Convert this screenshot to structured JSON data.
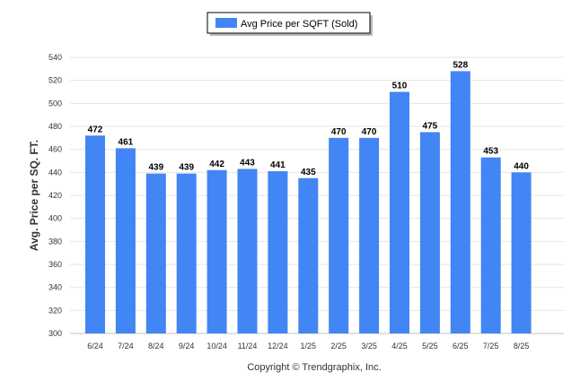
{
  "chart_data": {
    "type": "bar",
    "categories": [
      "6/24",
      "7/24",
      "8/24",
      "9/24",
      "10/24",
      "11/24",
      "12/24",
      "1/25",
      "2/25",
      "3/25",
      "4/25",
      "5/25",
      "6/25",
      "7/25",
      "8/25"
    ],
    "series": [
      {
        "name": "Avg Price per SQFT (Sold)",
        "values": [
          472,
          461,
          439,
          439,
          442,
          443,
          441,
          435,
          470,
          470,
          510,
          475,
          528,
          453,
          440
        ],
        "color": "#4285f4"
      }
    ],
    "ylabel": "Avg. Price per SQ. FT.",
    "xlabel": "",
    "ylim": [
      300,
      540
    ],
    "yticks": [
      300,
      320,
      340,
      360,
      380,
      400,
      420,
      440,
      460,
      480,
      500,
      520,
      540
    ],
    "grid": true,
    "legend_position": "top-center",
    "data_labels": true
  },
  "legend": {
    "label": "Avg Price per SQFT (Sold)",
    "color": "#4285f4"
  },
  "footer": {
    "text": "Copyright © Trendgraphix, Inc."
  }
}
